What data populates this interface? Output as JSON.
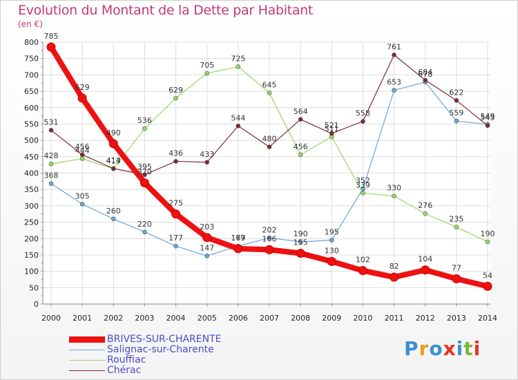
{
  "header": {
    "title": "Evolution du Montant de la Dette par Habitant",
    "unit": "(en €)"
  },
  "logo": {
    "text": "Proxiti",
    "colors": [
      "#3a8fd6",
      "#f29a1e",
      "#3a8fd6",
      "#e8331f",
      "#3a8fd6",
      "#7ab83a",
      "#e8331f"
    ]
  },
  "chart_data": {
    "type": "line",
    "title": "Evolution du Montant de la Dette par Habitant",
    "ylabel": "(en €)",
    "xlabel": "",
    "x": [
      "2000",
      "2001",
      "2002",
      "2003",
      "2004",
      "2005",
      "2006",
      "2007",
      "2008",
      "2009",
      "2010",
      "2011",
      "2012",
      "2013",
      "2014"
    ],
    "ylim": [
      0,
      800
    ],
    "yticks": [
      0,
      50,
      100,
      150,
      200,
      250,
      300,
      350,
      400,
      450,
      500,
      550,
      600,
      650,
      700,
      750,
      800
    ],
    "grid": true,
    "legend_position": "bottom-left",
    "series": [
      {
        "name": "BRIVES-SUR-CHARENTE",
        "color": "#ee1111",
        "emphasis": true,
        "values": [
          785,
          629,
          490,
          370,
          275,
          203,
          169,
          166,
          155,
          130,
          102,
          82,
          104,
          77,
          54
        ]
      },
      {
        "name": "Salignac-sur-Charente",
        "color": "#6aa6d8",
        "values": [
          368,
          305,
          260,
          220,
          177,
          147,
          177,
          202,
          190,
          195,
          352,
          653,
          678,
          559,
          549
        ]
      },
      {
        "name": "Rouffiac",
        "color": "#95d764",
        "values": [
          428,
          444,
          413,
          536,
          629,
          705,
          725,
          645,
          456,
          511,
          339,
          330,
          276,
          235,
          190
        ]
      },
      {
        "name": "Chérac",
        "color": "#7b2a30",
        "values": [
          531,
          456,
          414,
          395,
          436,
          433,
          544,
          480,
          564,
          521,
          558,
          761,
          684,
          622,
          545
        ]
      }
    ]
  }
}
